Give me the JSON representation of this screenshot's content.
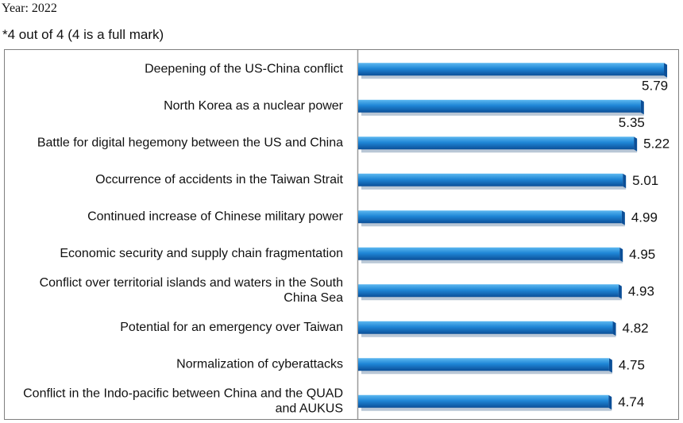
{
  "header": {
    "year": "Year: 2022",
    "note": "*4 out of 4 (4 is a full mark)"
  },
  "colors": {
    "bar_light": "#5db8f0",
    "bar_mid": "#1f86d6",
    "bar_dark": "#0b4f98",
    "frame": "#7f7f7f",
    "axis": "#9a9a9a"
  },
  "chart_data": {
    "type": "bar",
    "orientation": "horizontal",
    "title": "",
    "xlabel": "",
    "ylabel": "",
    "xlim": [
      0,
      6
    ],
    "grid": false,
    "categories": [
      [
        "Deepening of the US-China conflict"
      ],
      [
        "North Korea as a nuclear power"
      ],
      [
        "Battle for digital hegemony between the US and China"
      ],
      [
        "Occurrence of accidents in the Taiwan Strait"
      ],
      [
        "Continued increase of Chinese military power"
      ],
      [
        "Economic security and supply chain fragmentation"
      ],
      [
        "Conflict over territorial islands and waters in the South",
        "China Sea"
      ],
      [
        "Potential for an emergency over Taiwan"
      ],
      [
        "Normalization of cyberattacks"
      ],
      [
        "Conflict in the Indo-pacific between China and the QUAD",
        "and AUKUS"
      ]
    ],
    "values": [
      5.79,
      5.35,
      5.22,
      5.01,
      4.99,
      4.95,
      4.93,
      4.82,
      4.75,
      4.74
    ],
    "value_labels": [
      "5.79",
      "5.35",
      "5.22",
      "5.01",
      "4.99",
      "4.95",
      "4.93",
      "4.82",
      "4.75",
      "4.74"
    ]
  }
}
